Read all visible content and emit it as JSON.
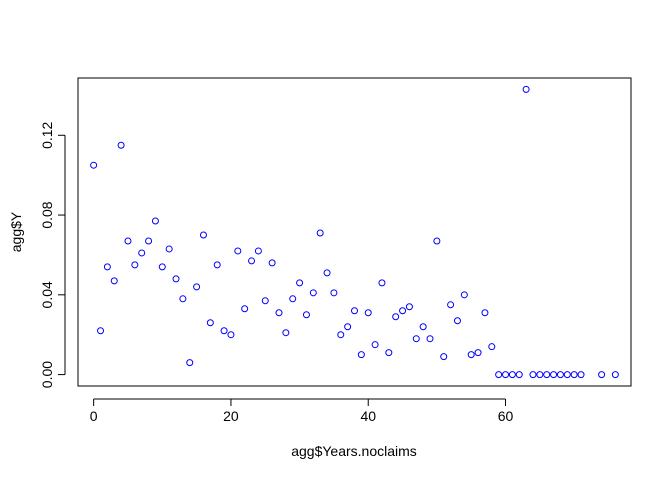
{
  "chart_data": {
    "type": "scatter",
    "title": "",
    "xlabel": "agg$Years.noclaims",
    "ylabel": "agg$Y",
    "xlim": [
      -2.28,
      78.28
    ],
    "ylim": [
      -0.00572,
      0.14872
    ],
    "x_ticks": [
      0,
      20,
      40,
      60
    ],
    "x_tick_labels": [
      "0",
      "20",
      "40",
      "60"
    ],
    "y_ticks": [
      0.0,
      0.04,
      0.08,
      0.12
    ],
    "y_tick_labels": [
      "0.00",
      "0.04",
      "0.08",
      "0.12"
    ],
    "grid": false,
    "legend": "none",
    "point_color": "#0000ff",
    "point_shape": "open-circle",
    "x": [
      0,
      1,
      2,
      3,
      4,
      5,
      6,
      7,
      8,
      9,
      10,
      11,
      12,
      13,
      14,
      15,
      16,
      17,
      18,
      19,
      20,
      21,
      22,
      23,
      24,
      25,
      26,
      27,
      28,
      29,
      30,
      31,
      32,
      33,
      34,
      35,
      36,
      37,
      38,
      39,
      40,
      41,
      42,
      43,
      44,
      45,
      46,
      47,
      48,
      49,
      50,
      51,
      52,
      53,
      54,
      55,
      56,
      57,
      58,
      59,
      60,
      61,
      62,
      63,
      64,
      65,
      66,
      67,
      68,
      69,
      70,
      71,
      74,
      76
    ],
    "y": [
      0.105,
      0.022,
      0.054,
      0.047,
      0.115,
      0.067,
      0.055,
      0.061,
      0.067,
      0.077,
      0.054,
      0.063,
      0.048,
      0.038,
      0.006,
      0.044,
      0.07,
      0.026,
      0.055,
      0.022,
      0.02,
      0.062,
      0.033,
      0.057,
      0.062,
      0.037,
      0.056,
      0.031,
      0.021,
      0.038,
      0.046,
      0.03,
      0.041,
      0.071,
      0.051,
      0.041,
      0.02,
      0.024,
      0.032,
      0.01,
      0.031,
      0.015,
      0.046,
      0.011,
      0.029,
      0.032,
      0.034,
      0.018,
      0.024,
      0.018,
      0.067,
      0.009,
      0.035,
      0.027,
      0.04,
      0.01,
      0.011,
      0.031,
      0.014,
      0.0,
      0.0,
      0.0,
      0.0,
      0.143,
      0.0,
      0.0,
      0.0,
      0.0,
      0.0,
      0.0,
      0.0,
      0.0,
      0.0,
      0.0
    ]
  }
}
